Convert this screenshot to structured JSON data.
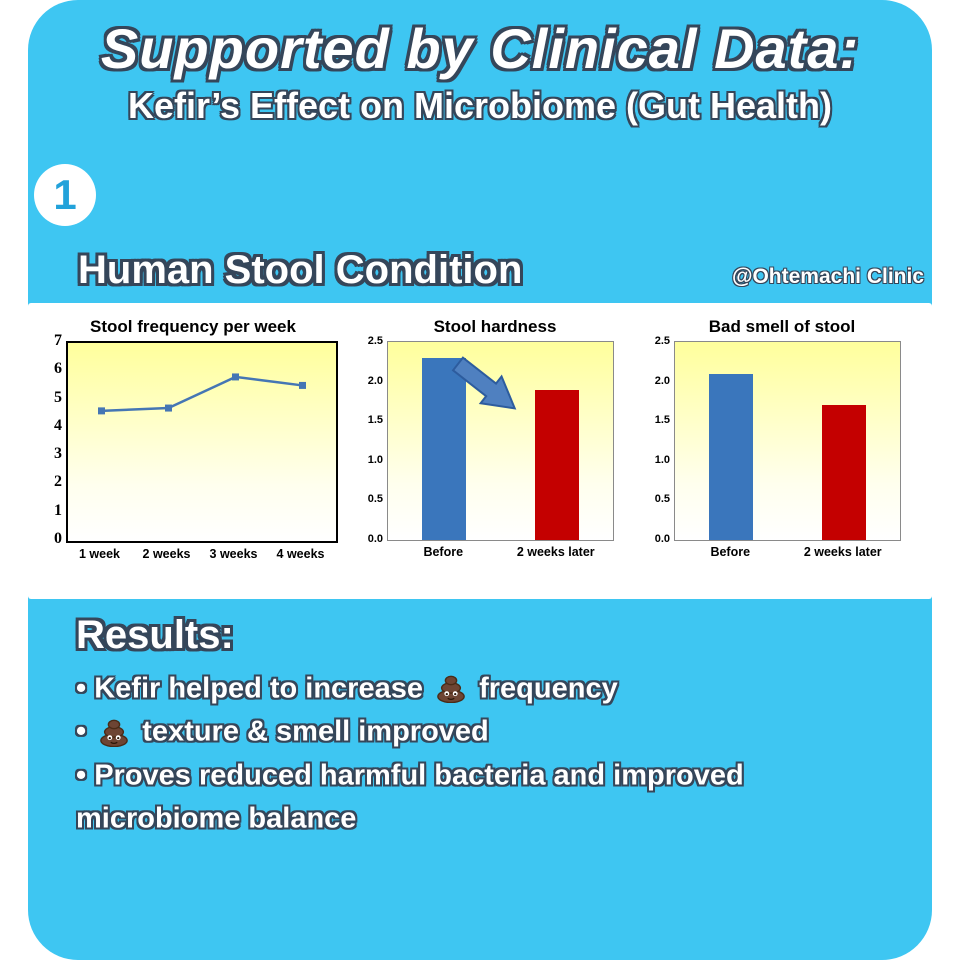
{
  "colors": {
    "background": "#3ec6f2",
    "text_outline": "#35465a",
    "panel": "#ffffff",
    "bar_blue": "#3a76bc",
    "bar_red": "#c40000",
    "line_blue": "#4576b4",
    "plot_gradient_top": "#ffff9c",
    "plot_gradient_bottom": "#ffffff"
  },
  "header": {
    "title": "Supported by Clinical Data:",
    "subtitle": "Kefir’s Effect on Microbiome (Gut Health)"
  },
  "badge": {
    "number": "1"
  },
  "section": {
    "title": "Human Stool Condition",
    "credit": "@Ohtemachi Clinic"
  },
  "chart_data": [
    {
      "type": "line",
      "title": "Stool frequency per week",
      "x": [
        "1 week",
        "2 weeks",
        "3 weeks",
        "4 weeks"
      ],
      "values": [
        4.6,
        4.7,
        5.8,
        5.5
      ],
      "ylim": [
        0,
        7
      ],
      "yticks": [
        "0",
        "1",
        "2",
        "3",
        "4",
        "5",
        "6",
        "7"
      ],
      "line_color": "#4576b4",
      "marker": "square",
      "plot_background": "yellow-to-white vertical gradient",
      "grid": false
    },
    {
      "type": "bar",
      "title": "Stool hardness",
      "categories": [
        "Before",
        "2 weeks later"
      ],
      "values": [
        2.3,
        1.9
      ],
      "ylim": [
        0,
        2.5
      ],
      "yticks": [
        "0.0",
        "0.5",
        "1.0",
        "1.5",
        "2.0",
        "2.5"
      ],
      "bar_colors": [
        "#3a76bc",
        "#c40000"
      ],
      "annotation": "blue arrow pointing from Before bar down toward 2 weeks later bar",
      "plot_background": "yellow-to-white vertical gradient",
      "grid": false
    },
    {
      "type": "bar",
      "title": "Bad smell of stool",
      "categories": [
        "Before",
        "2 weeks later"
      ],
      "values": [
        2.1,
        1.7
      ],
      "ylim": [
        0,
        2.5
      ],
      "yticks": [
        "0.0",
        "0.5",
        "1.0",
        "1.5",
        "2.0",
        "2.5"
      ],
      "bar_colors": [
        "#3a76bc",
        "#c40000"
      ],
      "plot_background": "yellow-to-white vertical gradient",
      "grid": false
    }
  ],
  "results": {
    "heading": "Results:",
    "bullets": [
      [
        {
          "text": "• Kefir helped to increase "
        },
        {
          "icon": "poop-icon"
        },
        {
          "text": " frequency"
        }
      ],
      [
        {
          "text": "• "
        },
        {
          "icon": "poop-icon"
        },
        {
          "text": " texture & smell improved"
        }
      ],
      [
        {
          "text": "• Proves reduced harmful bacteria and improved"
        }
      ],
      [
        {
          "text": "microbiome balance"
        }
      ]
    ]
  }
}
